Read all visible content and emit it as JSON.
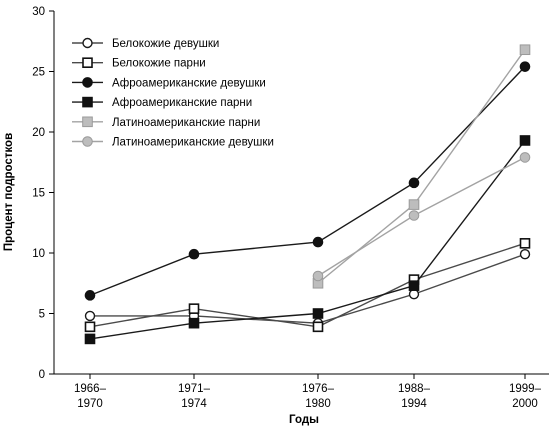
{
  "chart_data": {
    "type": "line",
    "xlabel": "Годы",
    "ylabel": "Процент подростков",
    "ylim": [
      0,
      30
    ],
    "yticks": [
      0,
      5,
      10,
      15,
      20,
      25,
      30
    ],
    "grid": false,
    "legend_position": "top-left",
    "categories": [
      [
        "1966–",
        "1970"
      ],
      [
        "1971–",
        "1974"
      ],
      [
        "1976–",
        "1980"
      ],
      [
        "1988–",
        "1994"
      ],
      [
        "1999–",
        "2000"
      ]
    ],
    "series": [
      {
        "name": "Белокожие девушки",
        "marker": "circle-open",
        "color": "#4a4a4a",
        "values": [
          4.8,
          4.8,
          4.2,
          6.6,
          9.9
        ]
      },
      {
        "name": "Белокожие парни",
        "marker": "square-open",
        "color": "#4a4a4a",
        "values": [
          3.9,
          5.4,
          3.9,
          7.8,
          10.8
        ]
      },
      {
        "name": "Афроамериканские девушки",
        "marker": "circle-filled",
        "color": "#1a1a1a",
        "values": [
          6.5,
          9.9,
          10.9,
          15.8,
          25.4
        ]
      },
      {
        "name": "Афроамериканские парни",
        "marker": "square-filled",
        "color": "#1a1a1a",
        "values": [
          2.9,
          4.2,
          5.0,
          7.3,
          19.3
        ]
      },
      {
        "name": "Латиноамериканские парни",
        "marker": "square-gray",
        "color": "#a3a3a3",
        "values": [
          null,
          null,
          7.5,
          14.0,
          26.8
        ]
      },
      {
        "name": "Латиноамериканские девушки",
        "marker": "circle-gray",
        "color": "#a3a3a3",
        "values": [
          null,
          null,
          8.1,
          13.1,
          17.9
        ]
      }
    ]
  }
}
